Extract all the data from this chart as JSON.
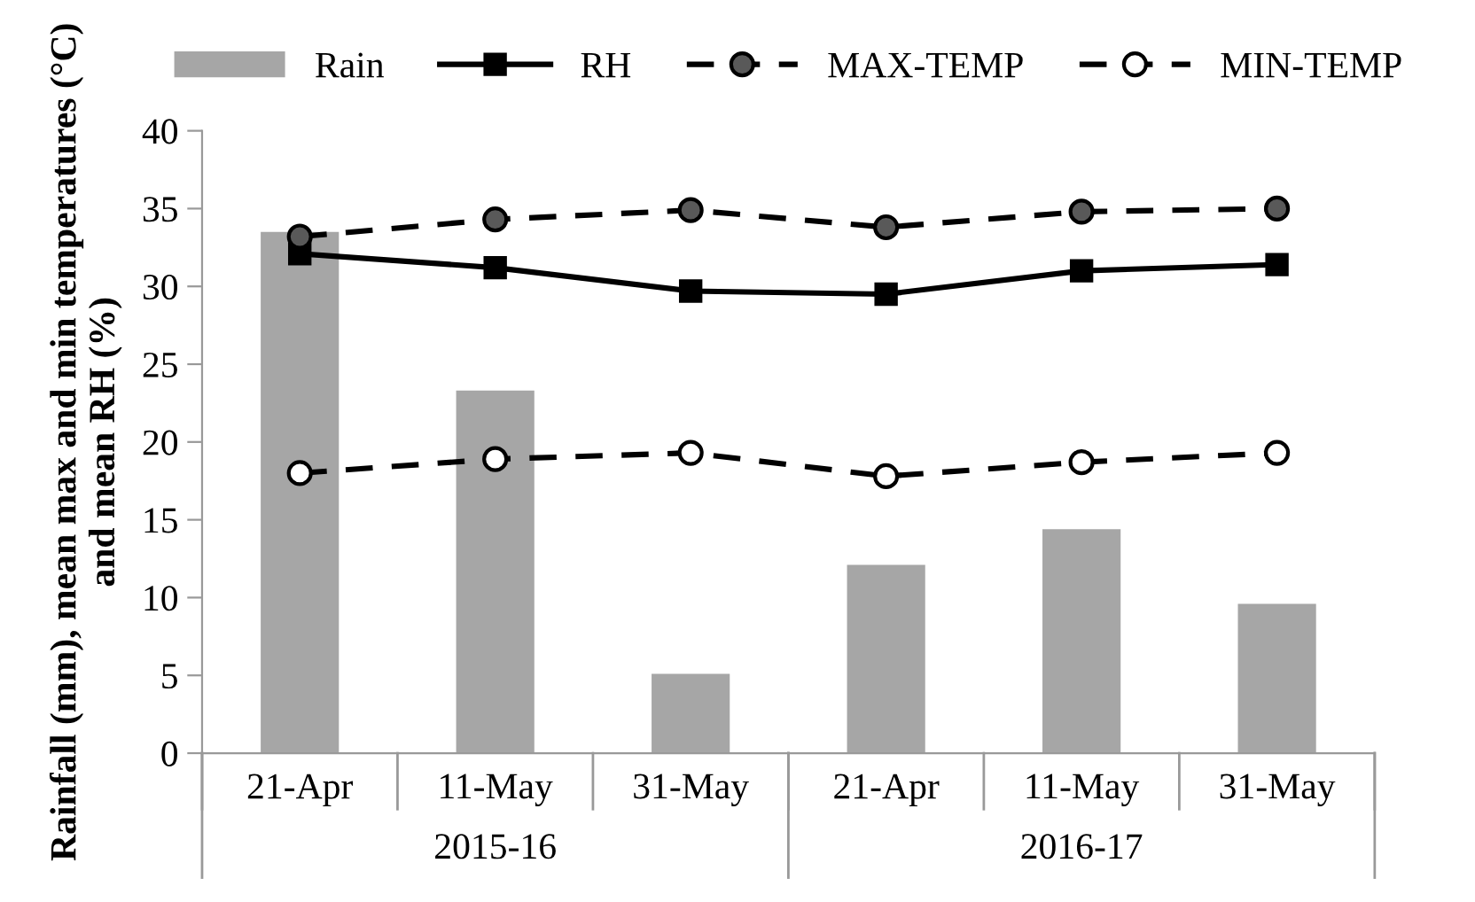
{
  "chart_data": {
    "type": "bar",
    "ylabel": "Rainfall (mm), mean max and min temperatures (°C) and mean RH (%)",
    "categories": [
      "21-Apr",
      "11-May",
      "31-May",
      "21-Apr",
      "11-May",
      "31-May"
    ],
    "annotations": [
      "2015-16",
      "2016-17"
    ],
    "series": [
      {
        "name": "Rain",
        "color": "#a6a6a6",
        "values": [
          33.5,
          23.3,
          5.1,
          12.1,
          14.4,
          9.6
        ]
      },
      {
        "name": "RH",
        "type": "line",
        "color": "#000000",
        "marker": "square",
        "line_style": "solid",
        "values": [
          32.1,
          31.2,
          29.7,
          29.5,
          31.0,
          31.4
        ]
      },
      {
        "name": "MAX-TEMP",
        "type": "line",
        "color": "#595959",
        "marker": "circle",
        "line_style": "dashed",
        "values": [
          33.2,
          34.3,
          34.9,
          33.8,
          34.8,
          35.0
        ]
      },
      {
        "name": "MIN-TEMP",
        "type": "line",
        "color": "#ffffff",
        "marker": "circle",
        "line_style": "dashed",
        "values": [
          18.0,
          18.9,
          19.3,
          17.8,
          18.7,
          19.3
        ]
      }
    ],
    "ylim": [
      0,
      40
    ],
    "yticks": [
      0,
      5,
      10,
      15,
      20,
      25,
      30,
      35,
      40
    ],
    "grid": false,
    "legend": "top"
  }
}
